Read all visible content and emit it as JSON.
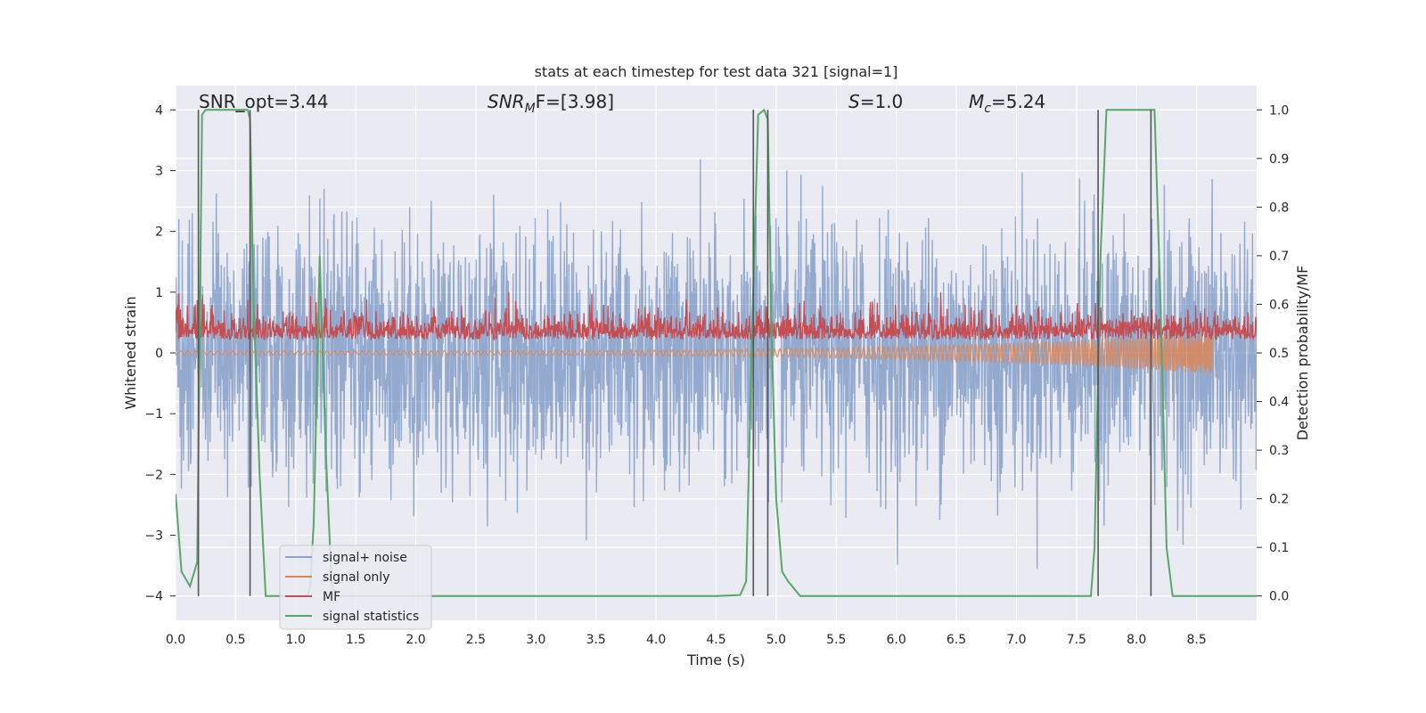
{
  "chart_data": {
    "type": "line",
    "title": "stats at each timestep for test data 321 [signal=1]",
    "xlabel": "Time (s)",
    "ylabel": "Whitened strain",
    "y2label": "Detection probability/MF",
    "xlim": [
      0.0,
      9.0
    ],
    "ylim": [
      -4.4,
      4.4
    ],
    "y2lim": [
      -0.05,
      1.05
    ],
    "grid": true,
    "legend_position": "lower-left",
    "x_ticks": [
      "0.0",
      "0.5",
      "1.0",
      "1.5",
      "2.0",
      "2.5",
      "3.0",
      "3.5",
      "4.0",
      "4.5",
      "5.0",
      "5.5",
      "6.0",
      "6.5",
      "7.0",
      "7.5",
      "8.0",
      "8.5"
    ],
    "y_ticks": [
      "4",
      "3",
      "2",
      "1",
      "0",
      "−1",
      "−2",
      "−3",
      "−4"
    ],
    "y2_ticks": [
      "1.0",
      "0.9",
      "0.8",
      "0.7",
      "0.6",
      "0.5",
      "0.4",
      "0.3",
      "0.2",
      "0.1",
      "0.0"
    ],
    "annotations": [
      {
        "prefix": "SNR_opt=3.44",
        "sub": "",
        "suffix": ""
      },
      {
        "prefix": "SNR",
        "sub": "M",
        "suffix": "F=[3.98]"
      },
      {
        "prefix": "S",
        "sub": "",
        "suffix": "=1.0"
      },
      {
        "prefix": "M",
        "sub": "c",
        "suffix": "=5.24"
      }
    ],
    "series": [
      {
        "name": "signal+ noise",
        "color": "#4c72b0",
        "style": "dense noisy strain, amplitude envelope approx ±2.5, peaks near ±4"
      },
      {
        "name": "signal only",
        "color": "#dd8452",
        "style": "chirp rising from 0 to approx 0.35 amplitude, ending near t=8.65"
      },
      {
        "name": "MF",
        "color": "#c44e52",
        "style": "noisy matched-filter output between 0.0 and approx 1.0 (left axis units)"
      },
      {
        "name": "signal statistics",
        "color": "#55a868",
        "x": [
          0.0,
          0.05,
          0.12,
          0.18,
          0.22,
          0.25,
          0.3,
          0.4,
          0.5,
          0.6,
          0.62,
          0.65,
          0.7,
          0.75,
          0.8,
          1.0,
          1.1,
          1.12,
          1.15,
          1.2,
          1.25,
          1.3,
          1.35,
          1.4,
          1.5,
          2.0,
          3.0,
          4.0,
          4.5,
          4.7,
          4.75,
          4.8,
          4.85,
          4.9,
          4.93,
          4.96,
          5.0,
          5.05,
          5.1,
          5.2,
          5.5,
          6.0,
          7.0,
          7.5,
          7.62,
          7.65,
          7.7,
          7.75,
          8.0,
          8.1,
          8.15,
          8.2,
          8.25,
          8.3,
          8.5,
          9.0
        ],
        "y": [
          0.21,
          0.05,
          0.02,
          0.07,
          0.99,
          1.0,
          1.0,
          1.0,
          1.0,
          1.0,
          0.98,
          0.6,
          0.25,
          0.0,
          0.0,
          0.0,
          0.0,
          0.02,
          0.15,
          0.7,
          0.3,
          0.02,
          0.0,
          0.0,
          0.0,
          0.0,
          0.0,
          0.0,
          0.0,
          0.002,
          0.03,
          0.55,
          0.99,
          1.0,
          0.98,
          0.55,
          0.2,
          0.05,
          0.03,
          0.0,
          0.0,
          0.0,
          0.0,
          0.0,
          0.0,
          0.1,
          0.7,
          1.0,
          1.0,
          1.0,
          1.0,
          0.6,
          0.1,
          0.0,
          0.0,
          0.0
        ]
      }
    ],
    "markers": {
      "color": "#555555",
      "x": [
        0.19,
        0.62,
        4.81,
        4.93,
        7.68,
        8.12
      ],
      "y_range": [
        -4.0,
        4.0
      ]
    },
    "legend": [
      "signal+ noise",
      "signal only",
      "MF",
      "signal statistics"
    ]
  }
}
